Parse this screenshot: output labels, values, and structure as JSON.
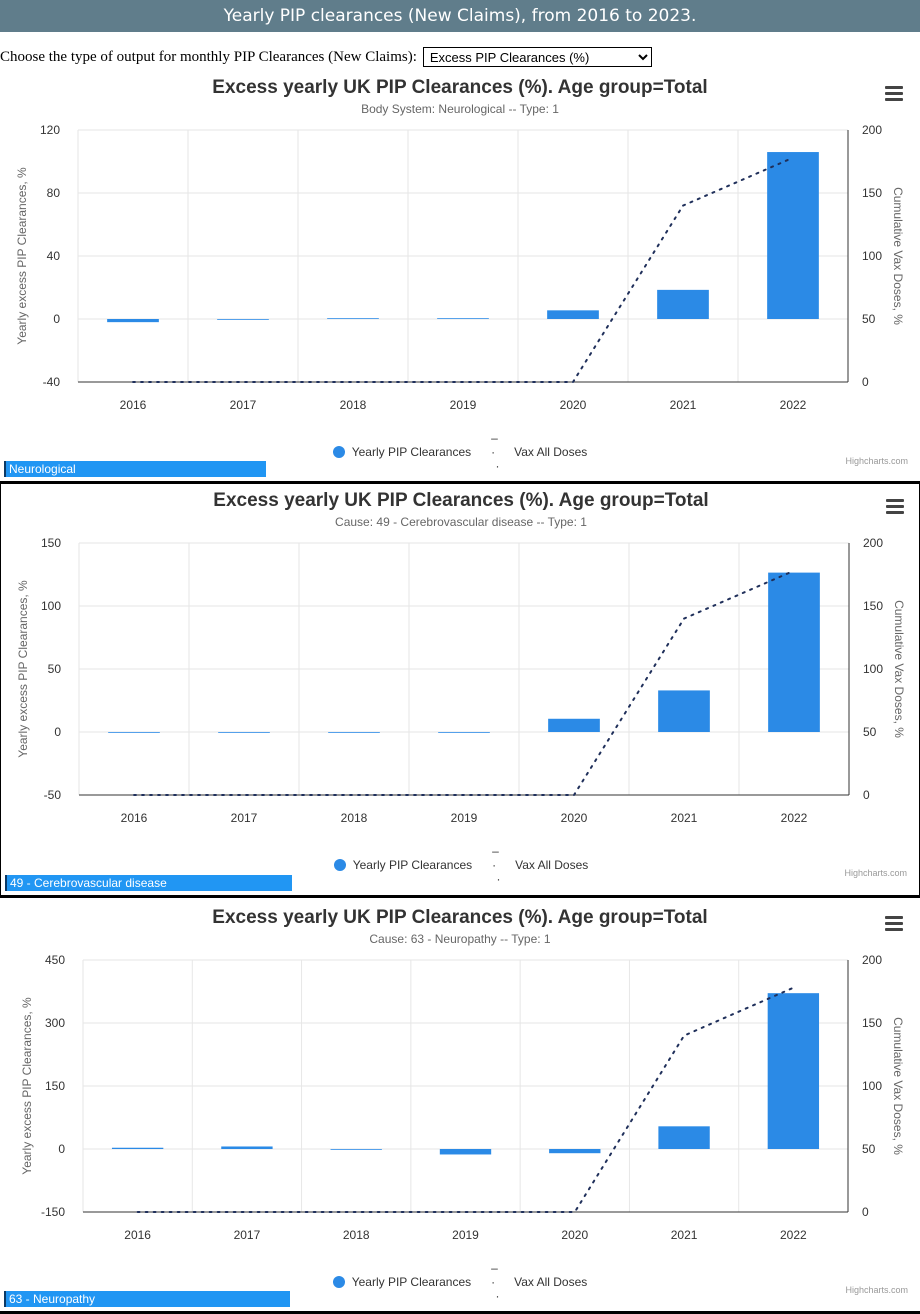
{
  "banner": {
    "title": "Yearly PIP clearances (New Claims), from 2016 to 2023."
  },
  "control": {
    "label": "Choose the type of output for monthly PIP Clearances (New Claims):",
    "selected": "Excess PIP Clearances (%)"
  },
  "credits": "Highcharts.com",
  "colors": {
    "bar": "#2b8ae6",
    "line": "#1f2f5a",
    "banner": "#607d8b",
    "tag": "#2196f3"
  },
  "icons": {
    "menu": "hamburger-menu-icon"
  },
  "chart_data": [
    {
      "type": "bar",
      "title": "Excess yearly UK PIP Clearances (%). Age group=Total",
      "subtitle": "Body System: Neurological -- Type: 1",
      "categories": [
        "2016",
        "2017",
        "2018",
        "2019",
        "2020",
        "2021",
        "2022"
      ],
      "ylabel": "Yearly excess PIP Clearances, %",
      "y2label": "Cumulative Vax Doses, %",
      "yticks": [
        120,
        80,
        40,
        0,
        -40
      ],
      "ylim": [
        -40,
        120
      ],
      "y2ticks": [
        200,
        150,
        100,
        50,
        0
      ],
      "y2lim": [
        0,
        200
      ],
      "grid": true,
      "legend_position": "bottom-center",
      "legend": [
        "Yearly PIP Clearances",
        "Vax All Doses"
      ],
      "series": [
        {
          "name": "Yearly PIP Clearances",
          "type": "column",
          "values": [
            -2,
            0,
            0.5,
            0.5,
            5.5,
            18.5,
            106
          ]
        },
        {
          "name": "Vax All Doses",
          "type": "dotted-line",
          "values": [
            0,
            0,
            0,
            0,
            0,
            140,
            178
          ]
        }
      ],
      "tag": "Neurological"
    },
    {
      "type": "bar",
      "title": "Excess yearly UK PIP Clearances (%). Age group=Total",
      "subtitle": "Cause: 49 - Cerebrovascular disease -- Type: 1",
      "categories": [
        "2016",
        "2017",
        "2018",
        "2019",
        "2020",
        "2021",
        "2022"
      ],
      "ylabel": "Yearly excess PIP Clearances, %",
      "y2label": "Cumulative Vax Doses, %",
      "yticks": [
        150,
        100,
        50,
        0,
        -50
      ],
      "ylim": [
        -50,
        150
      ],
      "y2ticks": [
        200,
        150,
        100,
        50,
        0
      ],
      "y2lim": [
        0,
        200
      ],
      "grid": true,
      "legend_position": "bottom-center",
      "legend": [
        "Yearly PIP Clearances",
        "Vax All Doses"
      ],
      "series": [
        {
          "name": "Yearly PIP Clearances",
          "type": "column",
          "values": [
            0,
            0,
            0,
            0,
            10.5,
            33,
            126.5
          ]
        },
        {
          "name": "Vax All Doses",
          "type": "dotted-line",
          "values": [
            0,
            0,
            0,
            0,
            0,
            140,
            178
          ]
        }
      ],
      "tag": "49 - Cerebrovascular disease"
    },
    {
      "type": "bar",
      "title": "Excess yearly UK PIP Clearances (%). Age group=Total",
      "subtitle": "Cause: 63 - Neuropathy -- Type: 1",
      "categories": [
        "2016",
        "2017",
        "2018",
        "2019",
        "2020",
        "2021",
        "2022"
      ],
      "ylabel": "Yearly excess PIP Clearances, %",
      "y2label": "Cumulative Vax Doses, %",
      "yticks": [
        450,
        300,
        150,
        0,
        -150
      ],
      "ylim": [
        -150,
        450
      ],
      "y2ticks": [
        200,
        150,
        100,
        50,
        0
      ],
      "y2lim": [
        0,
        200
      ],
      "grid": true,
      "legend_position": "bottom-center",
      "legend": [
        "Yearly PIP Clearances",
        "Vax All Doses"
      ],
      "series": [
        {
          "name": "Yearly PIP Clearances",
          "type": "column",
          "values": [
            3,
            6,
            0,
            -13,
            -10,
            54,
            371
          ]
        },
        {
          "name": "Vax All Doses",
          "type": "dotted-line",
          "values": [
            0,
            0,
            0,
            0,
            0,
            140,
            178
          ]
        }
      ],
      "tag": "63 - Neuropathy"
    }
  ]
}
